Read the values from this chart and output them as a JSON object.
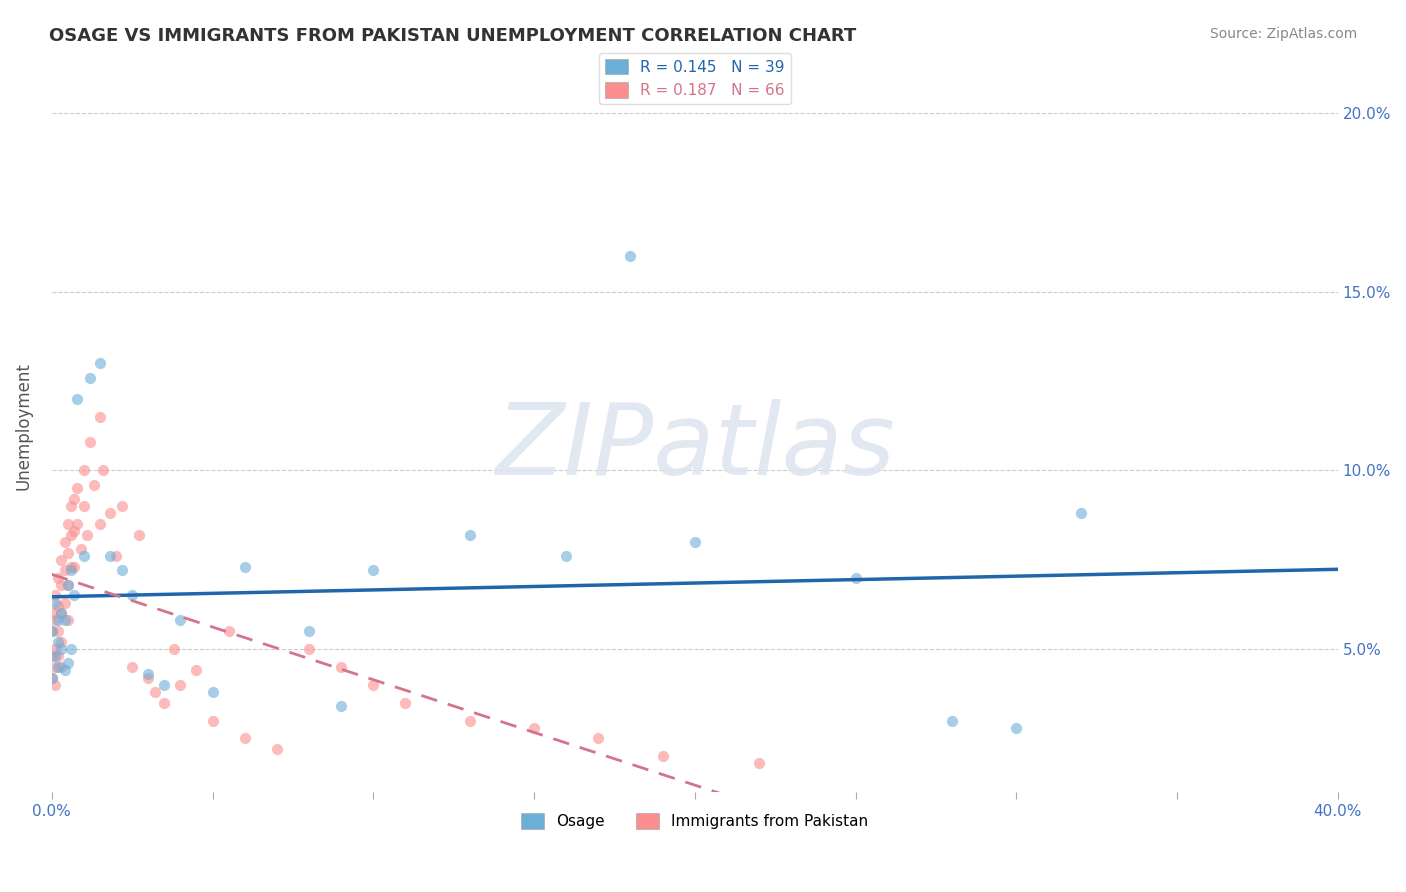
{
  "title": "OSAGE VS IMMIGRANTS FROM PAKISTAN UNEMPLOYMENT CORRELATION CHART",
  "source_text": "Source: ZipAtlas.com",
  "ylabel": "Unemployment",
  "xlabel": "",
  "xlim": [
    0.0,
    0.4
  ],
  "ylim": [
    0.01,
    0.215
  ],
  "xticks": [
    0.0,
    0.05,
    0.1,
    0.15,
    0.2,
    0.25,
    0.3,
    0.35,
    0.4
  ],
  "yticks": [
    0.05,
    0.1,
    0.15,
    0.2
  ],
  "yticklabels": [
    "5.0%",
    "10.0%",
    "15.0%",
    "20.0%"
  ],
  "legend_entries": [
    {
      "label": "R = 0.145   N = 39",
      "color": "#6baed6"
    },
    {
      "label": "R = 0.187   N = 66",
      "color": "#fc8d8d"
    }
  ],
  "legend_bottom": [
    "Osage",
    "Immigrants from Pakistan"
  ],
  "watermark": "ZIPatlas",
  "osage_scatter_x": [
    0.0,
    0.0,
    0.001,
    0.001,
    0.002,
    0.002,
    0.002,
    0.003,
    0.003,
    0.004,
    0.004,
    0.005,
    0.005,
    0.006,
    0.006,
    0.007,
    0.008,
    0.01,
    0.012,
    0.015,
    0.018,
    0.022,
    0.025,
    0.03,
    0.035,
    0.04,
    0.05,
    0.06,
    0.08,
    0.09,
    0.1,
    0.13,
    0.16,
    0.18,
    0.2,
    0.25,
    0.28,
    0.3,
    0.32
  ],
  "osage_scatter_y": [
    0.055,
    0.042,
    0.063,
    0.048,
    0.058,
    0.045,
    0.052,
    0.06,
    0.05,
    0.058,
    0.044,
    0.068,
    0.046,
    0.072,
    0.05,
    0.065,
    0.12,
    0.076,
    0.126,
    0.13,
    0.076,
    0.072,
    0.065,
    0.043,
    0.04,
    0.058,
    0.038,
    0.073,
    0.055,
    0.034,
    0.072,
    0.082,
    0.076,
    0.16,
    0.08,
    0.07,
    0.03,
    0.028,
    0.088
  ],
  "pakistan_scatter_x": [
    0.0,
    0.0,
    0.0,
    0.0,
    0.001,
    0.001,
    0.001,
    0.001,
    0.001,
    0.002,
    0.002,
    0.002,
    0.002,
    0.003,
    0.003,
    0.003,
    0.003,
    0.003,
    0.004,
    0.004,
    0.004,
    0.005,
    0.005,
    0.005,
    0.005,
    0.006,
    0.006,
    0.006,
    0.007,
    0.007,
    0.007,
    0.008,
    0.008,
    0.009,
    0.01,
    0.01,
    0.011,
    0.012,
    0.013,
    0.015,
    0.015,
    0.016,
    0.018,
    0.02,
    0.022,
    0.025,
    0.027,
    0.03,
    0.032,
    0.035,
    0.038,
    0.04,
    0.045,
    0.05,
    0.055,
    0.06,
    0.07,
    0.08,
    0.09,
    0.1,
    0.11,
    0.13,
    0.15,
    0.17,
    0.19,
    0.22
  ],
  "pakistan_scatter_y": [
    0.06,
    0.055,
    0.048,
    0.042,
    0.065,
    0.058,
    0.05,
    0.045,
    0.04,
    0.07,
    0.062,
    0.055,
    0.048,
    0.075,
    0.068,
    0.06,
    0.052,
    0.045,
    0.08,
    0.072,
    0.063,
    0.085,
    0.077,
    0.068,
    0.058,
    0.09,
    0.082,
    0.073,
    0.092,
    0.083,
    0.073,
    0.095,
    0.085,
    0.078,
    0.1,
    0.09,
    0.082,
    0.108,
    0.096,
    0.115,
    0.085,
    0.1,
    0.088,
    0.076,
    0.09,
    0.045,
    0.082,
    0.042,
    0.038,
    0.035,
    0.05,
    0.04,
    0.044,
    0.03,
    0.055,
    0.025,
    0.022,
    0.05,
    0.045,
    0.04,
    0.035,
    0.03,
    0.028,
    0.025,
    0.02,
    0.018
  ],
  "osage_color": "#6baed6",
  "pakistan_color": "#fc8d8d",
  "osage_line_color": "#2166ac",
  "pakistan_line_color": "#d4748a",
  "grid_color": "#cccccc",
  "background_color": "#ffffff",
  "title_color": "#333333",
  "axis_label_color": "#555555",
  "tick_color": "#4472c4",
  "watermark_zip_color": "#d0d8e8",
  "watermark_atlas_color": "#c8d8e8"
}
